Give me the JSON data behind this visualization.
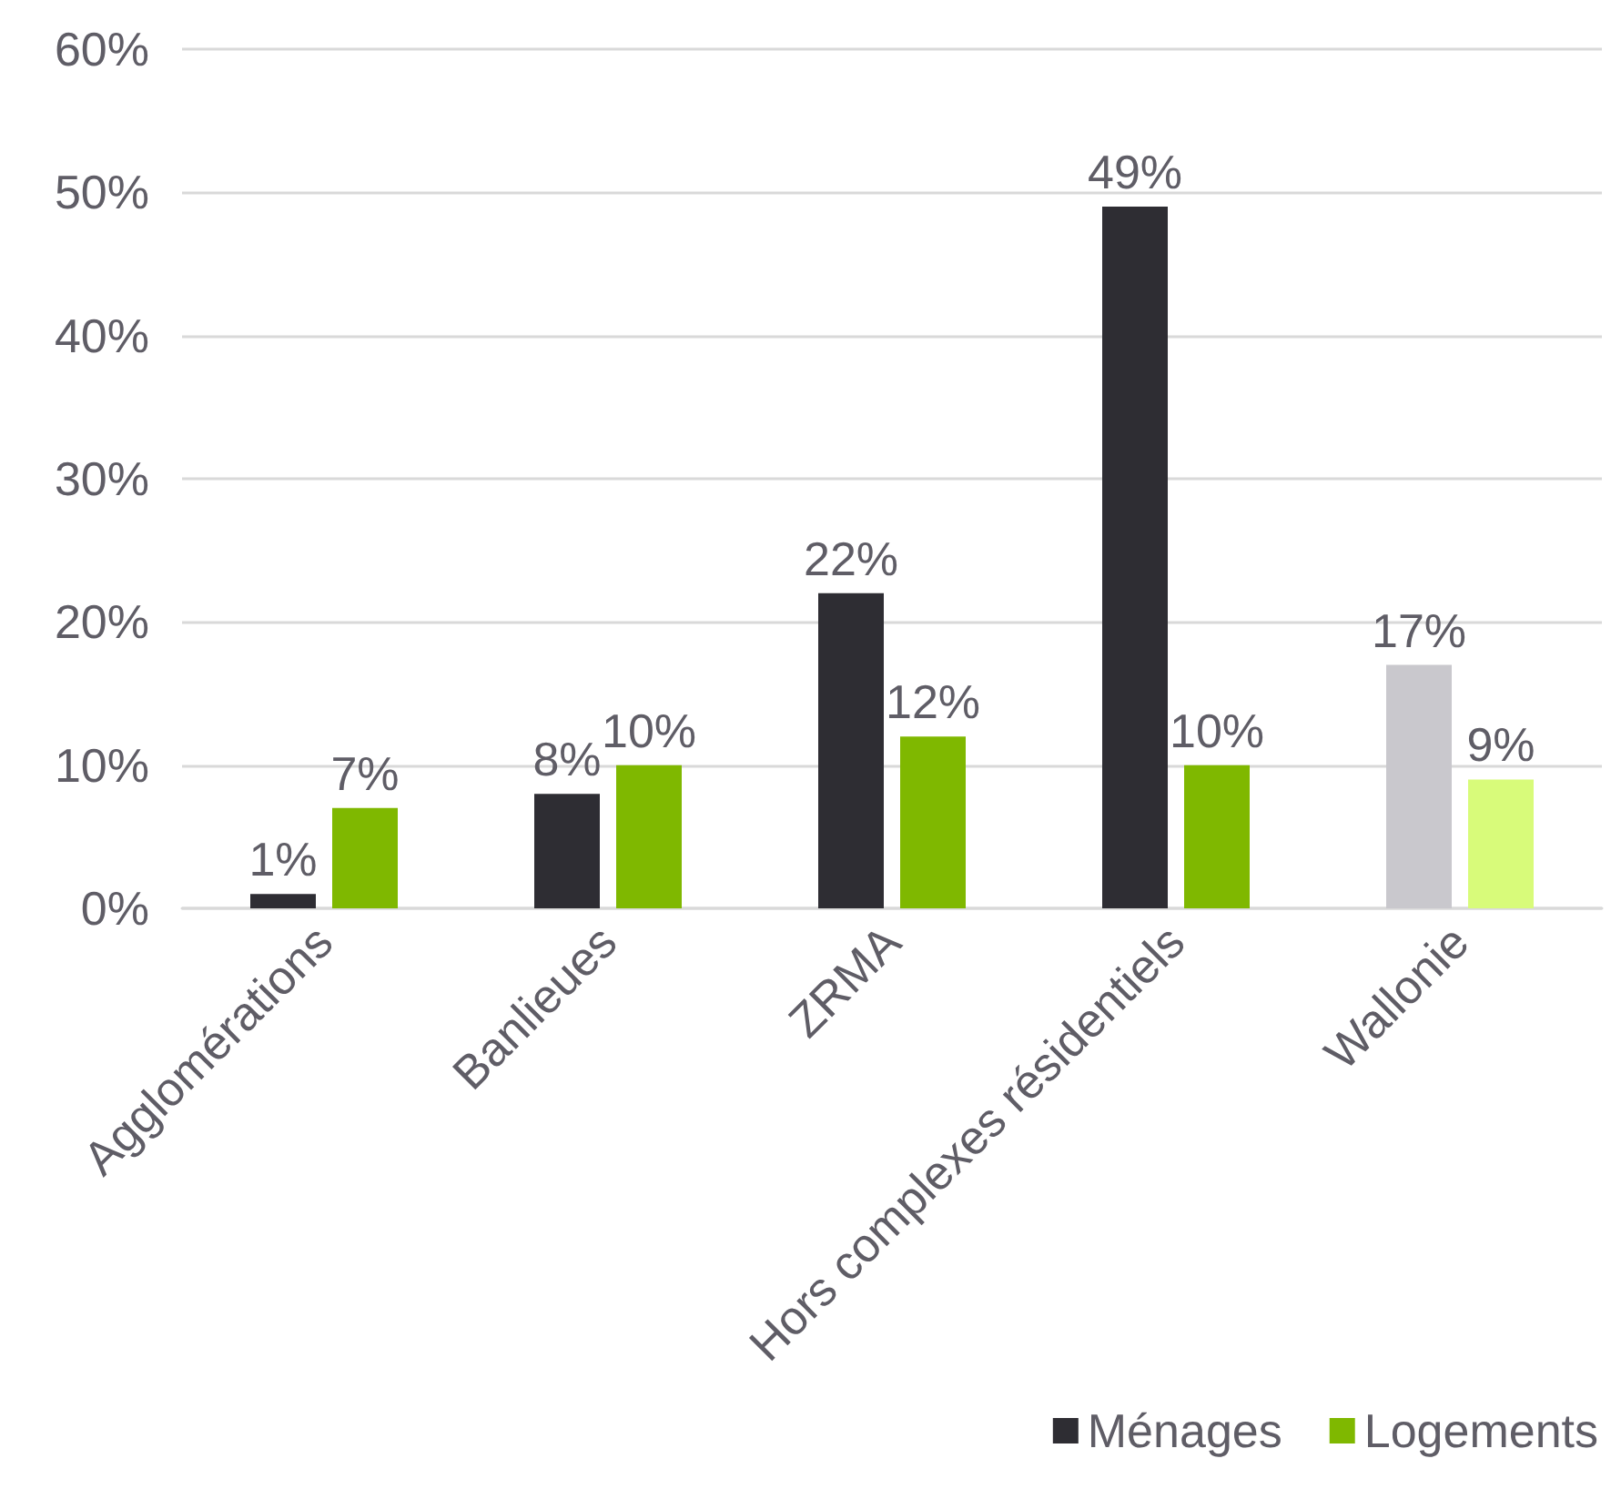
{
  "chart_data": {
    "type": "bar",
    "categories": [
      "Agglomérations",
      "Banlieues",
      "ZRMA",
      "Hors complexes résidentiels",
      "Wallonie"
    ],
    "series": [
      {
        "name": "Ménages",
        "color": "#2e2d33",
        "colors": [
          "#2e2d33",
          "#2e2d33",
          "#2e2d33",
          "#2e2d33",
          "#c9c8cd"
        ],
        "values": [
          1,
          8,
          22,
          49,
          17
        ],
        "value_labels": [
          "1%",
          "8%",
          "22%",
          "49%",
          "17%"
        ]
      },
      {
        "name": "Logements",
        "color": "#7fb800",
        "colors": [
          "#7fb800",
          "#7fb800",
          "#7fb800",
          "#7fb800",
          "#d8fb7a"
        ],
        "values": [
          7,
          10,
          12,
          10,
          9
        ],
        "value_labels": [
          "7%",
          "10%",
          "12%",
          "10%",
          "9%"
        ]
      }
    ],
    "ylim": [
      0,
      60
    ],
    "yticks": [
      {
        "value": 0,
        "label": "0%"
      },
      {
        "value": 10,
        "label": "10%"
      },
      {
        "value": 20,
        "label": "20%"
      },
      {
        "value": 30,
        "label": "30%"
      },
      {
        "value": 40,
        "label": "40%"
      },
      {
        "value": 50,
        "label": "50%"
      },
      {
        "value": 60,
        "label": "60%"
      }
    ],
    "grid": "y",
    "legend": "bottom right"
  }
}
